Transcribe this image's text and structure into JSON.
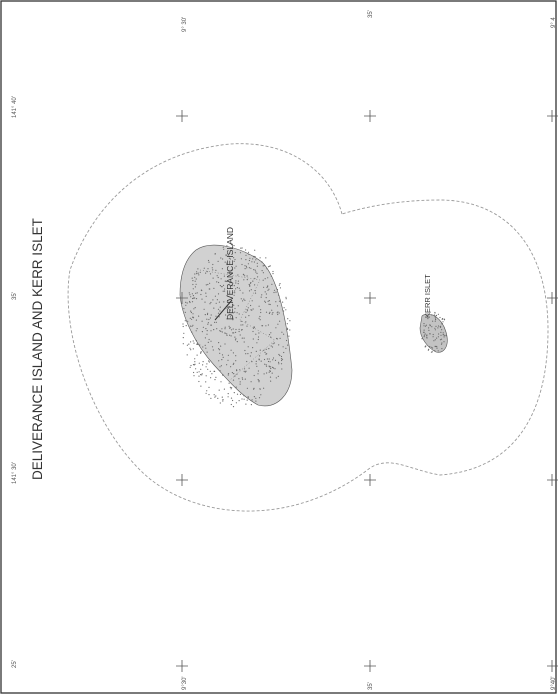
{
  "map": {
    "title": "DELIVERANCE ISLAND AND KERR ISLET",
    "features": {
      "deliverance_label": "DELIVERANCE ISLAND",
      "kerr_label": "KERR ISLET"
    },
    "longitude_labels": {
      "top": "141° 40'",
      "upper_mid": "35'",
      "lower_mid": "141° 30'",
      "bottom": "25'"
    },
    "latitude_labels": {
      "top_left": "9° 30'",
      "top_mid": "35'",
      "top_right": "9° 4",
      "bottom_left": "9°30'",
      "bottom_mid": "35'",
      "bottom_right": "9°40'"
    },
    "colors": {
      "land_stipple": "#6b6b6b",
      "boundary": "#9a9a9a",
      "frame": "#333333"
    }
  }
}
